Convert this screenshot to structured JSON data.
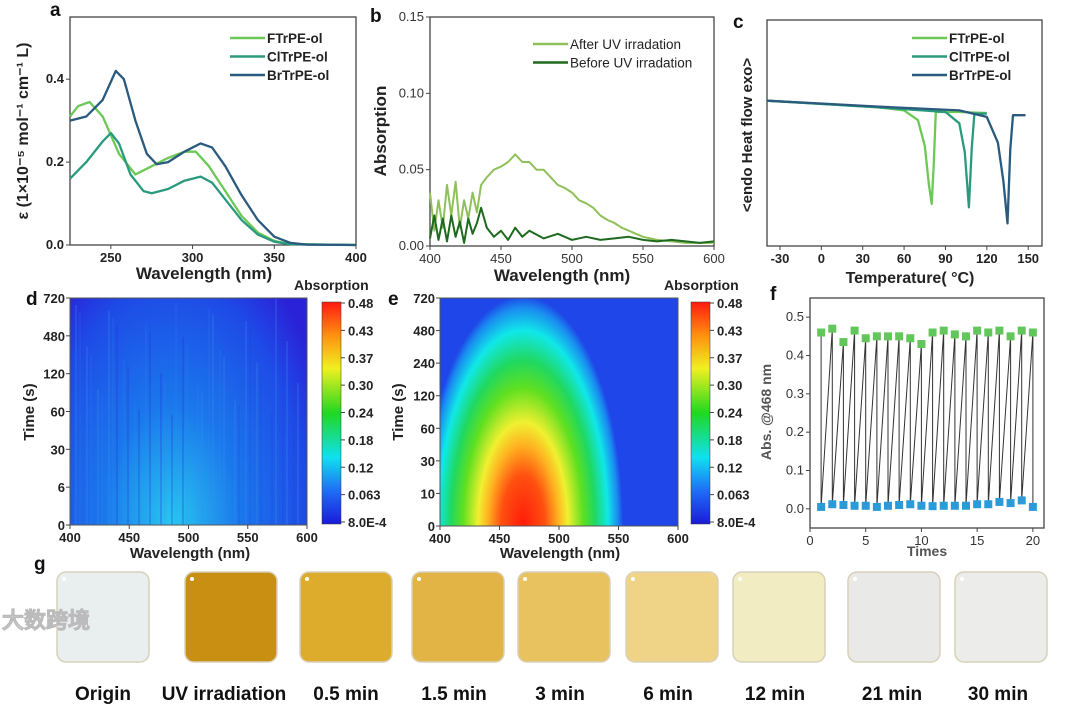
{
  "watermark": "大数跨境",
  "colors": {
    "F": "#6cc857",
    "Cl": "#2a9a7e",
    "Br": "#2a5a7d",
    "after": "#8fc05a",
    "before": "#1e6a1e",
    "high": "#62c75a",
    "low": "#2a9ad8"
  },
  "chart_data": [
    {
      "panel": "a",
      "type": "line",
      "xlabel": "Wavelength (nm)",
      "ylabel": "ε (1×10⁻⁵ mol⁻¹ cm⁻¹ L)",
      "xlim": [
        225,
        400
      ],
      "ylim": [
        0,
        0.55
      ],
      "xticks": [
        "250",
        "300",
        "350",
        "400"
      ],
      "yticks": [
        "0.0",
        "0.2",
        "0.4"
      ],
      "legend_position": "top-right",
      "series": [
        {
          "name": "FTrPE-ol",
          "x": [
            225,
            230,
            237,
            245,
            255,
            265,
            275,
            285,
            295,
            302,
            310,
            320,
            330,
            340,
            350,
            360,
            400
          ],
          "y": [
            0.31,
            0.335,
            0.345,
            0.31,
            0.22,
            0.17,
            0.19,
            0.21,
            0.225,
            0.225,
            0.19,
            0.13,
            0.07,
            0.03,
            0.01,
            0.002,
            0
          ]
        },
        {
          "name": "ClTrPE-ol",
          "x": [
            225,
            235,
            245,
            250,
            255,
            262,
            270,
            275,
            285,
            295,
            305,
            312,
            320,
            330,
            340,
            350,
            360,
            400
          ],
          "y": [
            0.16,
            0.2,
            0.25,
            0.27,
            0.245,
            0.17,
            0.13,
            0.125,
            0.135,
            0.155,
            0.165,
            0.15,
            0.11,
            0.06,
            0.025,
            0.008,
            0.002,
            0
          ]
        },
        {
          "name": "BrTrPE-ol",
          "x": [
            225,
            235,
            245,
            253,
            258,
            265,
            272,
            278,
            285,
            295,
            305,
            312,
            320,
            330,
            340,
            350,
            360,
            370,
            400
          ],
          "y": [
            0.3,
            0.31,
            0.35,
            0.42,
            0.4,
            0.3,
            0.22,
            0.195,
            0.2,
            0.225,
            0.245,
            0.235,
            0.19,
            0.12,
            0.06,
            0.02,
            0.005,
            0.001,
            0
          ]
        }
      ]
    },
    {
      "panel": "b",
      "type": "line",
      "xlabel": "Wavelength (nm)",
      "ylabel": "Absorption",
      "xlim": [
        400,
        600
      ],
      "ylim": [
        0,
        0.15
      ],
      "xticks": [
        "400",
        "450",
        "500",
        "550",
        "600"
      ],
      "yticks": [
        "0.00",
        "0.05",
        "0.10",
        "0.15"
      ],
      "legend_position": "top-right",
      "series": [
        {
          "name": "After UV irradation",
          "x": [
            400,
            403,
            406,
            409,
            412,
            415,
            418,
            421,
            424,
            427,
            430,
            433,
            436,
            440,
            445,
            450,
            455,
            460,
            465,
            470,
            475,
            480,
            485,
            490,
            495,
            500,
            505,
            510,
            515,
            520,
            525,
            530,
            535,
            540,
            545,
            550,
            555,
            560,
            570,
            580,
            590,
            600
          ],
          "y": [
            0.035,
            0.01,
            0.03,
            0.012,
            0.04,
            0.02,
            0.042,
            0.012,
            0.03,
            0.018,
            0.035,
            0.022,
            0.04,
            0.045,
            0.05,
            0.052,
            0.055,
            0.06,
            0.055,
            0.055,
            0.05,
            0.05,
            0.045,
            0.04,
            0.038,
            0.035,
            0.03,
            0.028,
            0.025,
            0.02,
            0.017,
            0.015,
            0.012,
            0.01,
            0.008,
            0.006,
            0.005,
            0.004,
            0.003,
            0.002,
            0.002,
            0.002
          ]
        },
        {
          "name": "Before UV irradation",
          "x": [
            400,
            403,
            406,
            409,
            412,
            415,
            418,
            421,
            424,
            427,
            430,
            433,
            436,
            440,
            445,
            450,
            455,
            460,
            465,
            470,
            480,
            490,
            500,
            510,
            520,
            530,
            540,
            550,
            560,
            570,
            580,
            590,
            600
          ],
          "y": [
            0.005,
            0.02,
            0.004,
            0.018,
            0.003,
            0.02,
            0.006,
            0.016,
            0.002,
            0.018,
            0.008,
            0.015,
            0.025,
            0.012,
            0.006,
            0.01,
            0.004,
            0.012,
            0.006,
            0.01,
            0.005,
            0.008,
            0.004,
            0.006,
            0.004,
            0.005,
            0.006,
            0.004,
            0.003,
            0.004,
            0.003,
            0.002,
            0.003
          ]
        }
      ]
    },
    {
      "panel": "c",
      "type": "line",
      "xlabel": "Temperature( °C)",
      "ylabel": "<endo Heat flow exo>",
      "xlim": [
        -39.4,
        160
      ],
      "ylim": [
        -4.5,
        2.5
      ],
      "xticks": [
        "-30",
        "0",
        "30",
        "60",
        "90",
        "120",
        "150"
      ],
      "yticks": [],
      "legend_position": "top-right",
      "series": [
        {
          "name": "FTrPE-ol",
          "x": [
            -39.4,
            0,
            40,
            60,
            70,
            75,
            78,
            80,
            81.5,
            83,
            100,
            120
          ],
          "y": [
            0,
            -0.1,
            -0.2,
            -0.3,
            -0.6,
            -1.4,
            -2.6,
            -3.2,
            -2.0,
            -0.35,
            -0.35,
            -0.38
          ]
        },
        {
          "name": "ClTrPE-ol",
          "x": [
            -39.4,
            40,
            90,
            100,
            104,
            107,
            109,
            111,
            120
          ],
          "y": [
            0,
            -0.2,
            -0.35,
            -0.7,
            -1.6,
            -3.3,
            -1.5,
            -0.4,
            -0.4
          ]
        },
        {
          "name": "BrTrPE-ol",
          "x": [
            -39.4,
            40,
            100,
            120,
            128,
            132,
            135,
            137,
            139,
            148
          ],
          "y": [
            0,
            -0.18,
            -0.3,
            -0.5,
            -1.3,
            -2.5,
            -3.8,
            -1.5,
            -0.45,
            -0.45
          ]
        }
      ]
    },
    {
      "panel": "d",
      "type": "heatmap",
      "xlabel": "Wavelength (nm)",
      "ylabel": "Time (s)",
      "colorbar_label": "Absorption",
      "xticks": [
        "400",
        "450",
        "500",
        "550",
        "600"
      ],
      "yticks": [
        "0",
        "6",
        "30",
        "60",
        "120",
        "480",
        "720"
      ],
      "colorbar_ticks": [
        "0.48",
        "0.43",
        "0.37",
        "0.30",
        "0.24",
        "0.18",
        "0.12",
        "0.063",
        "8.0E-4"
      ],
      "peak": {
        "wavelength": 470,
        "time": 0,
        "value": 0.1
      }
    },
    {
      "panel": "e",
      "type": "heatmap",
      "xlabel": "Wavelength (nm)",
      "ylabel": "Time (s)",
      "colorbar_label": "Absorption",
      "xticks": [
        "400",
        "450",
        "500",
        "550",
        "600"
      ],
      "yticks": [
        "0",
        "10",
        "30",
        "60",
        "120",
        "240",
        "480",
        "720"
      ],
      "colorbar_ticks": [
        "0.48",
        "0.43",
        "0.37",
        "0.30",
        "0.24",
        "0.18",
        "0.12",
        "0.063",
        "8.0E-4"
      ],
      "peak": {
        "wavelength": 470,
        "time": 0,
        "value": 0.48
      }
    },
    {
      "panel": "f",
      "type": "line",
      "xlabel": "Times",
      "ylabel": "Abs. @468 nm",
      "xlim": [
        0,
        21
      ],
      "ylim": [
        -0.05,
        0.55
      ],
      "xticks": [
        "0",
        "5",
        "10",
        "15",
        "20"
      ],
      "yticks": [
        "0.0",
        "0.1",
        "0.2",
        "0.3",
        "0.4",
        "0.5"
      ],
      "x": [
        1,
        2,
        3,
        4,
        5,
        6,
        7,
        8,
        9,
        10,
        11,
        12,
        13,
        14,
        15,
        16,
        17,
        18,
        19,
        20
      ],
      "high": [
        0.46,
        0.47,
        0.435,
        0.465,
        0.445,
        0.45,
        0.45,
        0.45,
        0.445,
        0.43,
        0.46,
        0.465,
        0.455,
        0.45,
        0.465,
        0.46,
        0.465,
        0.45,
        0.465,
        0.46
      ],
      "low": [
        0.005,
        0.012,
        0.01,
        0.008,
        0.008,
        0.005,
        0.008,
        0.01,
        0.012,
        0.008,
        0.007,
        0.008,
        0.008,
        0.008,
        0.012,
        0.012,
        0.018,
        0.015,
        0.022,
        0.005
      ]
    }
  ],
  "panel_g": {
    "label": "g",
    "samples": [
      {
        "label": "Origin",
        "color": "#e9eeee"
      },
      {
        "label": "UV irradiation",
        "color": "#c98f12"
      },
      {
        "label": "0.5 min",
        "color": "#ddac2c"
      },
      {
        "label": "1.5 min",
        "color": "#e2b445"
      },
      {
        "label": "3 min",
        "color": "#e8c25e"
      },
      {
        "label": "6 min",
        "color": "#efd488"
      },
      {
        "label": "12 min",
        "color": "#f1ecc2"
      },
      {
        "label": "21 min",
        "color": "#e9e9e7"
      },
      {
        "label": "30 min",
        "color": "#ececea"
      }
    ]
  },
  "panel_labels": {
    "a": "a",
    "b": "b",
    "c": "c",
    "d": "d",
    "e": "e",
    "f": "f"
  }
}
